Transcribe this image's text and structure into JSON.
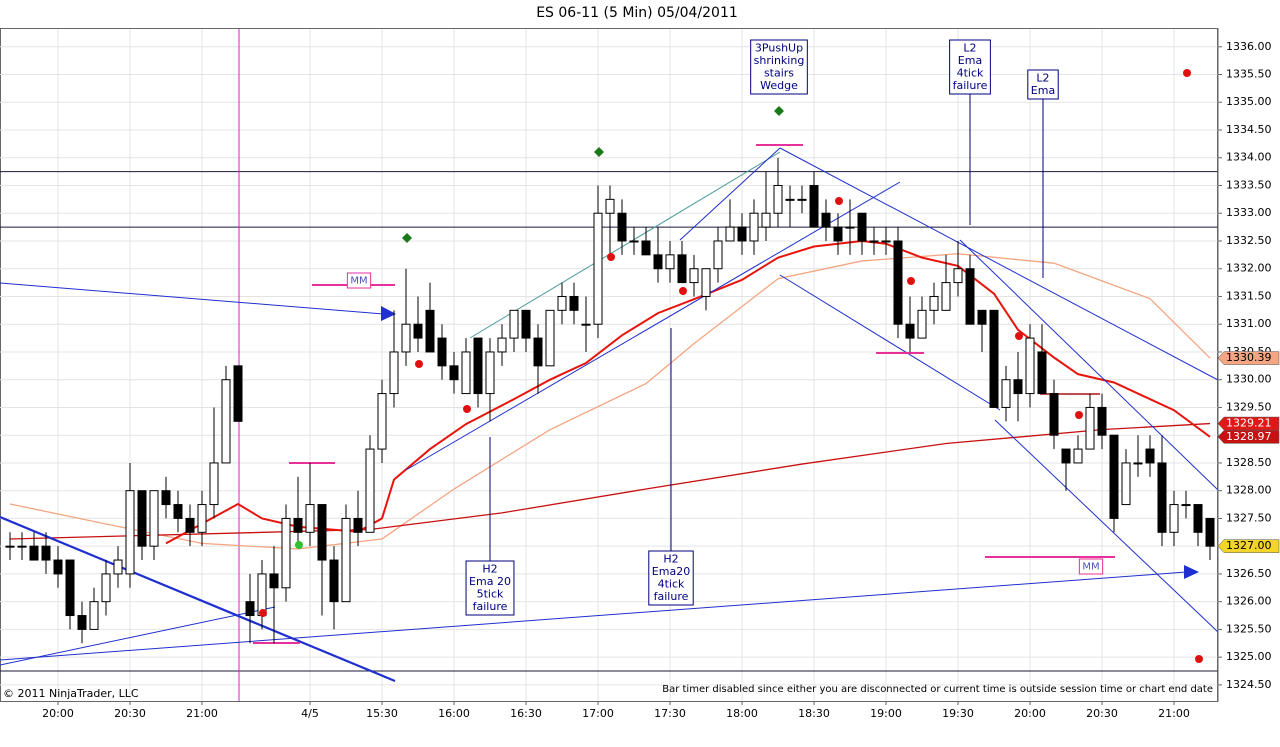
{
  "chart_data": {
    "type": "candlestick",
    "title": "ES 06-11 (5 Min)  05/04/2011",
    "categories": [
      null,
      null,
      null,
      null,
      "20:00",
      null,
      null,
      null,
      null,
      null,
      "20:30",
      null,
      null,
      null,
      null,
      null,
      "21:00",
      null,
      null,
      null,
      null,
      null,
      null,
      null,
      null,
      "4/5",
      null,
      null,
      null,
      null,
      null,
      "15:30",
      null,
      null,
      null,
      null,
      null,
      "16:00",
      null,
      null,
      null,
      null,
      null,
      "16:30",
      null,
      null,
      null,
      null,
      null,
      "17:00",
      null,
      null,
      null,
      null,
      null,
      "17:30",
      null,
      null,
      null,
      null,
      null,
      "18:00",
      null,
      null,
      null,
      null,
      null,
      "18:30",
      null,
      null,
      null,
      null,
      null,
      "19:00",
      null,
      null,
      null,
      null,
      null,
      "19:30",
      null,
      null,
      null,
      null,
      null,
      "20:00",
      null,
      null,
      null,
      null,
      null,
      "20:30",
      null,
      null,
      null,
      null,
      null,
      "21:00",
      null,
      null,
      null
    ],
    "open": [
      1327,
      1327,
      1327,
      1327,
      1326.75,
      1326.75,
      1325.75,
      1325.5,
      1326,
      1326.5,
      1326.5,
      1328,
      1327,
      1328,
      1327.75,
      1327.5,
      1327.25,
      1327.75,
      1328.5,
      1330.25,
      1326,
      1325.75,
      1326.5,
      1326.25,
      1327.5,
      1327.25,
      1327.75,
      1326.75,
      1326,
      1327.5,
      1327.25,
      1328.75,
      1329.75,
      1330.5,
      1331,
      1331.25,
      1330.75,
      1330.25,
      1329.75,
      1330.75,
      1329.75,
      1330.5,
      1330.75,
      1331.25,
      1330.75,
      1330.25,
      1331.25,
      1331.5,
      1331,
      1331,
      1333,
      1333,
      1332.5,
      1332.5,
      1332.25,
      1332,
      1332.25,
      1331.75,
      1331.5,
      1332,
      1332.5,
      1332.75,
      1332.5,
      1332.75,
      1333,
      1333.25,
      1333.25,
      1333.5,
      1333,
      1332.75,
      1332.75,
      1333,
      1332.5,
      1332.5,
      1332.5,
      1331,
      1330.75,
      1331.25,
      1331.25,
      1331.75,
      1332,
      1331.25,
      1331.25,
      1329.5,
      1330,
      1329.75,
      1330.5,
      1329.75,
      1328.75,
      1328.5,
      1328.75,
      1329.5,
      1329,
      1327.75,
      1328.5,
      1328.75,
      1328.5,
      1327.25,
      1327.75,
      1327.75,
      1327.5
    ],
    "high": [
      1327.25,
      1327.25,
      1327.25,
      1327.25,
      1327,
      1326.75,
      1326,
      1326.25,
      1326.75,
      1327,
      1328.5,
      1328,
      1328,
      1328.25,
      1328,
      1327.75,
      1328,
      1329.5,
      1330.25,
      1330.25,
      1326.5,
      1326.75,
      1327,
      1327.75,
      1328.25,
      1328.5,
      1327.75,
      1327,
      1327.75,
      1328,
      1329,
      1330,
      1331.25,
      1332,
      1331.5,
      1331.75,
      1331,
      1330.5,
      1330.75,
      1330.75,
      1330.75,
      1331,
      1331.25,
      1331.25,
      1331,
      1331.25,
      1331.75,
      1331.75,
      1331.5,
      1333.5,
      1333.5,
      1333.25,
      1332.75,
      1332.75,
      1332.75,
      1332.5,
      1332.5,
      1332.25,
      1332,
      1332.75,
      1333.25,
      1333,
      1333.25,
      1333.75,
      1334,
      1333.5,
      1333.5,
      1333.75,
      1333.25,
      1333,
      1333.25,
      1333,
      1332.75,
      1332.75,
      1332.75,
      1331.5,
      1331.5,
      1331.75,
      1332.25,
      1332.5,
      1332.25,
      1331.25,
      1331.25,
      1330.25,
      1330.5,
      1331,
      1331,
      1330,
      1328.75,
      1329,
      1329.75,
      1329.75,
      1329,
      1328.75,
      1329,
      1329,
      1329,
      1328,
      1328,
      1327.75,
      1327.5
    ],
    "low": [
      1326.75,
      1326.75,
      1326.75,
      1326.5,
      1326.25,
      1325.5,
      1325.25,
      1325.5,
      1325.75,
      1326.25,
      1326.25,
      1326.75,
      1326.75,
      1327.5,
      1327.25,
      1327,
      1327,
      1327.5,
      1328.5,
      1329.25,
      1325.25,
      1325.5,
      1325.25,
      1326,
      1327,
      1327,
      1325.75,
      1325.5,
      1326,
      1327,
      1327.25,
      1328.5,
      1329.5,
      1330.25,
      1330.5,
      1330.5,
      1330,
      1329.75,
      1329.75,
      1329.5,
      1329.25,
      1330.25,
      1330.5,
      1330.5,
      1329.75,
      1330.25,
      1331,
      1331,
      1330.5,
      1330.75,
      1332.25,
      1332.25,
      1332.25,
      1332.25,
      1331.75,
      1331.75,
      1331.75,
      1331.5,
      1331.25,
      1331.75,
      1332.5,
      1332.25,
      1332.25,
      1332.5,
      1332.75,
      1332.75,
      1333,
      1332.75,
      1332.5,
      1332.25,
      1332.25,
      1332.25,
      1332.25,
      1332.25,
      1330.75,
      1330.5,
      1330.75,
      1331,
      1331.25,
      1331.5,
      1331,
      1330.5,
      1329.5,
      1329.25,
      1329.25,
      1329.5,
      1329.75,
      1328.75,
      1328,
      1328.5,
      1328.75,
      1328.75,
      1327.25,
      1327.75,
      1328.25,
      1328.25,
      1327,
      1327,
      1327.5,
      1327,
      1326.75
    ],
    "close": [
      1327,
      1327,
      1326.75,
      1326.75,
      1326.5,
      1325.75,
      1325.5,
      1326,
      1326.5,
      1326.75,
      1328,
      1327,
      1328,
      1327.75,
      1327.5,
      1327.25,
      1327.75,
      1328.5,
      1330,
      1329.25,
      1325.75,
      1326.5,
      1326.25,
      1327.5,
      1327.25,
      1327.75,
      1326.75,
      1326,
      1327.5,
      1327.25,
      1328.75,
      1329.75,
      1330.5,
      1331,
      1330.75,
      1330.5,
      1330.25,
      1330,
      1330.5,
      1329.75,
      1330.5,
      1330.75,
      1331.25,
      1330.75,
      1330.25,
      1331.25,
      1331.5,
      1331.25,
      1331,
      1333,
      1333.25,
      1332.5,
      1332.5,
      1332.25,
      1332,
      1332.25,
      1331.75,
      1332,
      1332,
      1332.5,
      1332.75,
      1332.5,
      1333,
      1333,
      1333.5,
      1333.25,
      1333.25,
      1332.75,
      1332.75,
      1332.5,
      1332.75,
      1332.5,
      1332.5,
      1332.5,
      1331,
      1330.75,
      1331.25,
      1331.5,
      1331.75,
      1332,
      1331,
      1331,
      1329.5,
      1330,
      1329.75,
      1330.75,
      1329.75,
      1329,
      1328.5,
      1328.75,
      1329.5,
      1329,
      1327.5,
      1328.5,
      1328.5,
      1328.5,
      1327.25,
      1327.75,
      1327.75,
      1327.25,
      1327
    ],
    "up_color": "#ffffff",
    "down_color": "#000000",
    "ylim": [
      1324.21,
      1336.32
    ],
    "yticks": [
      {
        "value": 1324.5,
        "label": "1324.50"
      },
      {
        "value": 1325,
        "label": "1325.00"
      },
      {
        "value": 1325.5,
        "label": "1325.50"
      },
      {
        "value": 1326,
        "label": "1326.00"
      },
      {
        "value": 1326.5,
        "label": "1326.50"
      },
      {
        "value": 1327,
        "label": "1327.00"
      },
      {
        "value": 1327.5,
        "label": "1327.50"
      },
      {
        "value": 1328,
        "label": "1328.00"
      },
      {
        "value": 1328.5,
        "label": "1328.50"
      },
      {
        "value": 1329,
        "label": "1329.00"
      },
      {
        "value": 1329.5,
        "label": "1329.50"
      },
      {
        "value": 1330,
        "label": "1330.00"
      },
      {
        "value": 1330.5,
        "label": "1330.50"
      },
      {
        "value": 1331,
        "label": "1331.00"
      },
      {
        "value": 1331.5,
        "label": "1331.50"
      },
      {
        "value": 1332,
        "label": "1332.00"
      },
      {
        "value": 1332.5,
        "label": "1332.50"
      },
      {
        "value": 1333,
        "label": "1333.00"
      },
      {
        "value": 1333.5,
        "label": "1333.50"
      },
      {
        "value": 1334,
        "label": "1334.00"
      },
      {
        "value": 1334.5,
        "label": "1334.50"
      },
      {
        "value": 1335,
        "label": "1335.00"
      },
      {
        "value": 1335.5,
        "label": "1335.50"
      },
      {
        "value": 1336,
        "label": "1336.00"
      }
    ],
    "grid": true,
    "overlays": [
      {
        "color": "#f4a582",
        "x": [
          0,
          8,
          16,
          24,
          31,
          37,
          45,
          53,
          57,
          64,
          71,
          79,
          87,
          95,
          100
        ],
        "values": [
          1327.76,
          1327.4,
          1327.05,
          1326.95,
          1327.13,
          1328.03,
          1329.1,
          1329.93,
          1330.65,
          1331.82,
          1332.14,
          1332.27,
          1332.1,
          1331.46,
          1330.39
        ]
      },
      {
        "color": "#c81010",
        "x": [
          0,
          30,
          41,
          53,
          66,
          78,
          91,
          100
        ],
        "values": [
          1327.13,
          1327.3,
          1327.6,
          1328.03,
          1328.48,
          1328.85,
          1329.1,
          1329.21
        ]
      },
      {
        "color": "#e8140c",
        "x": [
          13,
          19,
          21,
          24,
          29,
          31,
          32,
          35,
          38,
          42,
          45,
          48,
          51,
          54,
          57,
          61,
          64,
          67,
          71,
          73,
          76,
          79,
          82,
          84,
          87,
          89,
          92,
          94,
          97,
          100
        ],
        "values": [
          1327.05,
          1327.76,
          1327.5,
          1327.35,
          1327.26,
          1327.5,
          1328.2,
          1328.75,
          1329.2,
          1329.65,
          1330,
          1330.3,
          1330.8,
          1331.2,
          1331.45,
          1331.8,
          1332.2,
          1332.4,
          1332.5,
          1332.45,
          1332.2,
          1332.05,
          1331.55,
          1330.9,
          1330.4,
          1330.1,
          1329.95,
          1329.75,
          1329.45,
          1328.97
        ]
      }
    ],
    "price_markers": [
      {
        "value": 1330.39,
        "color": "#f4a582"
      },
      {
        "value": 1329.21,
        "color": "#e01818"
      },
      {
        "value": 1328.97,
        "color": "#c81010"
      },
      {
        "value": 1327,
        "label": "1327.00",
        "color": "#f2d42a"
      }
    ],
    "hlines": [
      1333.75,
      1332.75,
      1324.75
    ],
    "annotations": [
      {
        "lines": [
          "MM"
        ]
      },
      {
        "lines": [
          "3PushUp",
          "shrinking",
          "stairs",
          "Wedge"
        ]
      },
      {
        "lines": [
          "L2",
          "Ema",
          "4tick",
          "failure"
        ]
      },
      {
        "lines": [
          "L2",
          "Ema"
        ]
      },
      {
        "lines": [
          "H2",
          "Ema 20",
          "5tick",
          "failure"
        ]
      },
      {
        "lines": [
          "H2",
          "Ema20",
          "4tick",
          "failure"
        ]
      },
      {
        "lines": [
          "MM"
        ]
      }
    ],
    "copyright": "© 2011 NinjaTrader, LLC",
    "status": "Bar timer disabled since either you are disconnected or current time is outside session time or chart end date"
  }
}
